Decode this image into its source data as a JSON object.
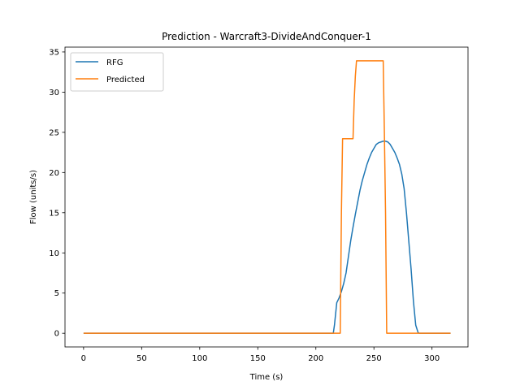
{
  "chart_data": {
    "type": "line",
    "title": "Prediction - Warcraft3-DivideAndConquer-1",
    "xlabel": "Time (s)",
    "ylabel": "Flow (units/s)",
    "xlim": [
      -16,
      331
    ],
    "ylim": [
      -1.7,
      35.6
    ],
    "xticks": [
      0,
      50,
      100,
      150,
      200,
      250,
      300
    ],
    "yticks": [
      0,
      5,
      10,
      15,
      20,
      25,
      30,
      35
    ],
    "legend_position": "upper-left",
    "grid": false,
    "series": [
      {
        "name": "RFG",
        "color": "#1f77b4",
        "x": [
          0,
          215,
          216,
          218,
          220,
          222,
          224,
          226,
          228,
          230,
          232,
          234,
          236,
          238,
          240,
          242,
          244,
          246,
          248,
          250,
          252,
          254,
          256,
          258,
          260,
          262,
          264,
          266,
          268,
          270,
          272,
          274,
          276,
          278,
          280,
          282,
          284,
          286,
          288,
          289,
          290,
          316
        ],
        "y": [
          0,
          0,
          1.0,
          3.8,
          4.4,
          5.2,
          6.2,
          7.5,
          9.5,
          11.5,
          13.2,
          14.8,
          16.3,
          17.8,
          19.0,
          20.0,
          21.0,
          21.8,
          22.5,
          23.0,
          23.5,
          23.7,
          23.8,
          23.9,
          23.9,
          23.8,
          23.5,
          23.0,
          22.5,
          21.8,
          21.0,
          19.8,
          18.0,
          15.0,
          11.5,
          8.0,
          4.0,
          1.0,
          0.1,
          0,
          0,
          0
        ]
      },
      {
        "name": "Predicted",
        "color": "#ff7f0e",
        "x": [
          0,
          221,
          222,
          223,
          232,
          233,
          234,
          235,
          258,
          259,
          260,
          261,
          316
        ],
        "y": [
          0,
          0,
          15.0,
          24.2,
          24.2,
          29.0,
          32.0,
          33.9,
          33.9,
          25.0,
          15.0,
          0,
          0
        ]
      }
    ]
  }
}
